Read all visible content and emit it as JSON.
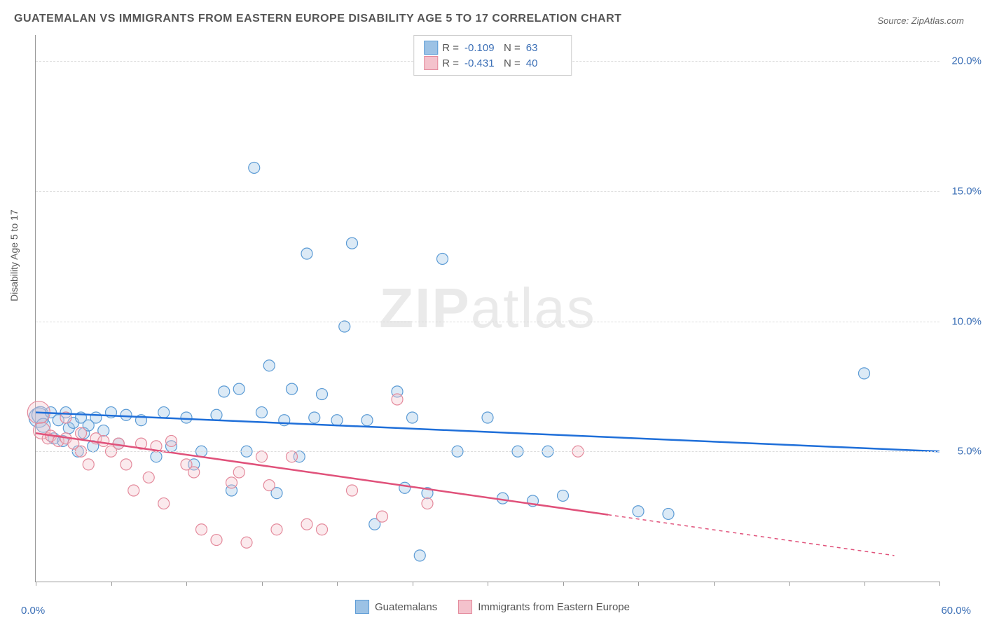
{
  "title": "GUATEMALAN VS IMMIGRANTS FROM EASTERN EUROPE DISABILITY AGE 5 TO 17 CORRELATION CHART",
  "source": "Source: ZipAtlas.com",
  "ylabel": "Disability Age 5 to 17",
  "watermark_bold": "ZIP",
  "watermark_light": "atlas",
  "chart": {
    "type": "scatter",
    "xlim": [
      0,
      60
    ],
    "ylim": [
      0,
      21
    ],
    "xtick_positions": [
      0,
      5,
      10,
      15,
      20,
      25,
      30,
      35,
      40,
      45,
      50,
      55,
      60
    ],
    "ytick_positions": [
      5,
      10,
      15,
      20
    ],
    "ytick_labels": [
      "5.0%",
      "10.0%",
      "15.0%",
      "20.0%"
    ],
    "x_origin_label": "0.0%",
    "x_end_label": "60.0%",
    "background_color": "#ffffff",
    "grid_color": "#dddddd",
    "axis_color": "#999999",
    "label_color": "#3b6fb6",
    "marker_radius": 8,
    "marker_stroke_width": 1.2,
    "marker_fill_opacity": 0.35,
    "trend_line_width": 2.5,
    "series": [
      {
        "name": "Guatemalans",
        "color_fill": "#9cc2e5",
        "color_stroke": "#5b9bd5",
        "trend_color": "#1f6fd9",
        "r_value": "-0.109",
        "n_value": "63",
        "trend": {
          "x1": 0,
          "y1": 6.5,
          "x2": 60,
          "y2": 5.0,
          "dash_from_x": 60
        },
        "points": [
          {
            "x": 0.2,
            "y": 6.3,
            "r": 14
          },
          {
            "x": 0.3,
            "y": 6.4,
            "r": 12
          },
          {
            "x": 0.5,
            "y": 6.0,
            "r": 10
          },
          {
            "x": 1.0,
            "y": 6.5
          },
          {
            "x": 1.2,
            "y": 5.5
          },
          {
            "x": 1.5,
            "y": 6.2
          },
          {
            "x": 1.8,
            "y": 5.4
          },
          {
            "x": 2.0,
            "y": 6.5
          },
          {
            "x": 2.2,
            "y": 5.9
          },
          {
            "x": 2.5,
            "y": 6.1
          },
          {
            "x": 2.8,
            "y": 5.0
          },
          {
            "x": 3.0,
            "y": 6.3
          },
          {
            "x": 3.2,
            "y": 5.7
          },
          {
            "x": 3.5,
            "y": 6.0
          },
          {
            "x": 3.8,
            "y": 5.2
          },
          {
            "x": 4.0,
            "y": 6.3
          },
          {
            "x": 4.5,
            "y": 5.8
          },
          {
            "x": 5.0,
            "y": 6.5
          },
          {
            "x": 5.5,
            "y": 5.3
          },
          {
            "x": 6.0,
            "y": 6.4
          },
          {
            "x": 7.0,
            "y": 6.2
          },
          {
            "x": 8.0,
            "y": 4.8
          },
          {
            "x": 8.5,
            "y": 6.5
          },
          {
            "x": 9.0,
            "y": 5.2
          },
          {
            "x": 10.0,
            "y": 6.3
          },
          {
            "x": 10.5,
            "y": 4.5
          },
          {
            "x": 11.0,
            "y": 5.0
          },
          {
            "x": 12.0,
            "y": 6.4
          },
          {
            "x": 12.5,
            "y": 7.3
          },
          {
            "x": 13.0,
            "y": 3.5
          },
          {
            "x": 13.5,
            "y": 7.4
          },
          {
            "x": 14.0,
            "y": 5.0
          },
          {
            "x": 14.5,
            "y": 15.9
          },
          {
            "x": 15.0,
            "y": 6.5
          },
          {
            "x": 15.5,
            "y": 8.3
          },
          {
            "x": 16.0,
            "y": 3.4
          },
          {
            "x": 16.5,
            "y": 6.2
          },
          {
            "x": 17.0,
            "y": 7.4
          },
          {
            "x": 17.5,
            "y": 4.8
          },
          {
            "x": 18.0,
            "y": 12.6
          },
          {
            "x": 18.5,
            "y": 6.3
          },
          {
            "x": 19.0,
            "y": 7.2
          },
          {
            "x": 20.0,
            "y": 6.2
          },
          {
            "x": 20.5,
            "y": 9.8
          },
          {
            "x": 21.0,
            "y": 13.0
          },
          {
            "x": 22.0,
            "y": 6.2
          },
          {
            "x": 22.5,
            "y": 2.2
          },
          {
            "x": 24.0,
            "y": 7.3
          },
          {
            "x": 24.5,
            "y": 3.6
          },
          {
            "x": 25.0,
            "y": 6.3
          },
          {
            "x": 25.5,
            "y": 1.0
          },
          {
            "x": 26.0,
            "y": 3.4
          },
          {
            "x": 27.0,
            "y": 12.4
          },
          {
            "x": 28.0,
            "y": 5.0
          },
          {
            "x": 30.0,
            "y": 6.3
          },
          {
            "x": 31.0,
            "y": 3.2
          },
          {
            "x": 32.0,
            "y": 5.0
          },
          {
            "x": 33.0,
            "y": 3.1
          },
          {
            "x": 34.0,
            "y": 5.0
          },
          {
            "x": 35.0,
            "y": 3.3
          },
          {
            "x": 40.0,
            "y": 2.7
          },
          {
            "x": 42.0,
            "y": 2.6
          },
          {
            "x": 55.0,
            "y": 8.0
          }
        ]
      },
      {
        "name": "Immigrants from Eastern Europe",
        "color_fill": "#f4c2cc",
        "color_stroke": "#e48a9c",
        "trend_color": "#e0517a",
        "r_value": "-0.431",
        "n_value": "40",
        "trend": {
          "x1": 0,
          "y1": 5.7,
          "x2": 57,
          "y2": 1.0,
          "dash_from_x": 38
        },
        "points": [
          {
            "x": 0.2,
            "y": 6.5,
            "r": 16
          },
          {
            "x": 0.4,
            "y": 5.8,
            "r": 12
          },
          {
            "x": 0.8,
            "y": 5.5
          },
          {
            "x": 1.0,
            "y": 5.6
          },
          {
            "x": 1.5,
            "y": 5.4
          },
          {
            "x": 2.0,
            "y": 5.5
          },
          {
            "x": 2.0,
            "y": 6.3
          },
          {
            "x": 2.5,
            "y": 5.3
          },
          {
            "x": 3.0,
            "y": 5.0
          },
          {
            "x": 3.0,
            "y": 5.7
          },
          {
            "x": 3.5,
            "y": 4.5
          },
          {
            "x": 4.0,
            "y": 5.5
          },
          {
            "x": 4.5,
            "y": 5.4
          },
          {
            "x": 5.0,
            "y": 5.0
          },
          {
            "x": 5.5,
            "y": 5.3
          },
          {
            "x": 6.0,
            "y": 4.5
          },
          {
            "x": 6.5,
            "y": 3.5
          },
          {
            "x": 7.0,
            "y": 5.3
          },
          {
            "x": 7.5,
            "y": 4.0
          },
          {
            "x": 8.0,
            "y": 5.2
          },
          {
            "x": 8.5,
            "y": 3.0
          },
          {
            "x": 9.0,
            "y": 5.4
          },
          {
            "x": 10.0,
            "y": 4.5
          },
          {
            "x": 10.5,
            "y": 4.2
          },
          {
            "x": 11.0,
            "y": 2.0
          },
          {
            "x": 12.0,
            "y": 1.6
          },
          {
            "x": 13.0,
            "y": 3.8
          },
          {
            "x": 13.5,
            "y": 4.2
          },
          {
            "x": 14.0,
            "y": 1.5
          },
          {
            "x": 15.0,
            "y": 4.8
          },
          {
            "x": 15.5,
            "y": 3.7
          },
          {
            "x": 16.0,
            "y": 2.0
          },
          {
            "x": 17.0,
            "y": 4.8
          },
          {
            "x": 18.0,
            "y": 2.2
          },
          {
            "x": 19.0,
            "y": 2.0
          },
          {
            "x": 21.0,
            "y": 3.5
          },
          {
            "x": 23.0,
            "y": 2.5
          },
          {
            "x": 24.0,
            "y": 7.0
          },
          {
            "x": 26.0,
            "y": 3.0
          },
          {
            "x": 36.0,
            "y": 5.0
          }
        ]
      }
    ],
    "legend_bottom": [
      {
        "swatch_fill": "#9cc2e5",
        "swatch_stroke": "#5b9bd5",
        "label": "Guatemalans"
      },
      {
        "swatch_fill": "#f4c2cc",
        "swatch_stroke": "#e48a9c",
        "label": "Immigrants from Eastern Europe"
      }
    ]
  }
}
